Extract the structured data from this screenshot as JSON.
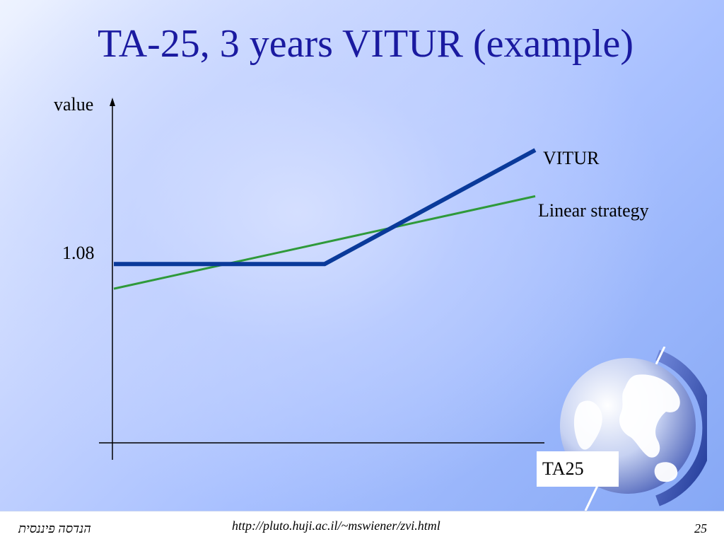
{
  "title": "TA-25, 3 years VITUR (example)",
  "chart_data": {
    "type": "line",
    "title": "TA-25, 3 years VITUR (example)",
    "xlabel": "TA25",
    "ylabel": "value",
    "yticks": [
      "1.08"
    ],
    "x": [
      0,
      1,
      2
    ],
    "series": [
      {
        "name": "VITUR",
        "color": "#0a3a9a",
        "points": [
          [
            0,
            1.08
          ],
          [
            1,
            1.08
          ],
          [
            2,
            1.45
          ]
        ]
      },
      {
        "name": "Linear strategy",
        "color": "#2f9a3a",
        "points": [
          [
            0,
            1.0
          ],
          [
            2,
            1.3
          ]
        ]
      }
    ],
    "ylim": [
      0.5,
      1.62
    ],
    "xlim": [
      0,
      2.0
    ],
    "grid": false,
    "legend": "labels at line ends"
  },
  "footer": {
    "left": "הנדסה פיננסית",
    "url": "http://pluto.huji.ac.il/~mswiener/zvi.html",
    "page": "25"
  },
  "icons": {
    "globe": "globe-icon"
  }
}
